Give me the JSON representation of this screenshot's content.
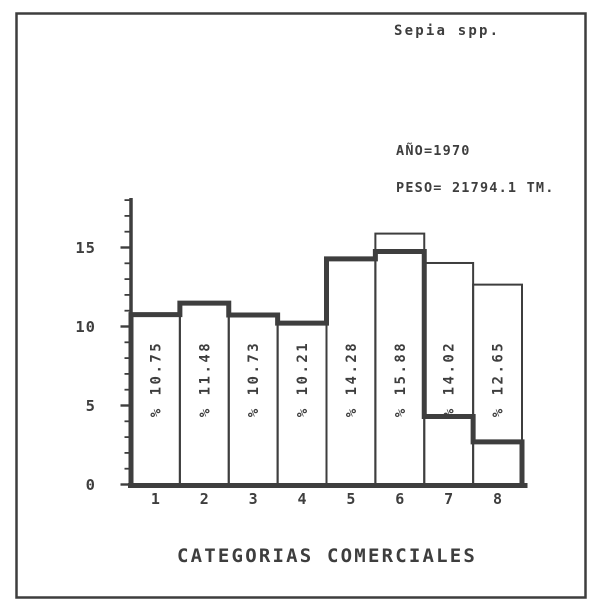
{
  "ink_color": "#3e3e3e",
  "paper_color": "#ffffff",
  "header": {
    "species_label": "Sepia spp."
  },
  "annotations": {
    "year_label": "AÑO=1970",
    "weight_label": "PESO= 21794.1 TM."
  },
  "chart_data": {
    "type": "bar",
    "title": "Sepia spp.",
    "xlabel": "CATEGORIAS COMERCIALES",
    "ylabel": "",
    "ylim": [
      0,
      18
    ],
    "yticks": [
      0,
      5,
      10,
      15
    ],
    "grid": false,
    "legend": false,
    "categories": [
      "1",
      "2",
      "3",
      "4",
      "5",
      "6",
      "7",
      "8"
    ],
    "series": [
      {
        "name": "bars",
        "type": "bar",
        "values": [
          10.75,
          11.48,
          10.73,
          10.21,
          14.28,
          15.88,
          14.02,
          12.65
        ],
        "bar_labels": [
          "% 10.75",
          "% 11.48",
          "% 10.73",
          "% 10.21",
          "% 14.28",
          "% 15.88",
          "% 14.02",
          "% 12.65"
        ]
      },
      {
        "name": "step-line",
        "type": "step",
        "values": [
          10.75,
          11.48,
          10.73,
          10.21,
          14.28,
          14.75,
          4.3,
          2.7
        ]
      }
    ],
    "annotations": [
      "AÑO=1970",
      "PESO= 21794.1 TM."
    ]
  }
}
